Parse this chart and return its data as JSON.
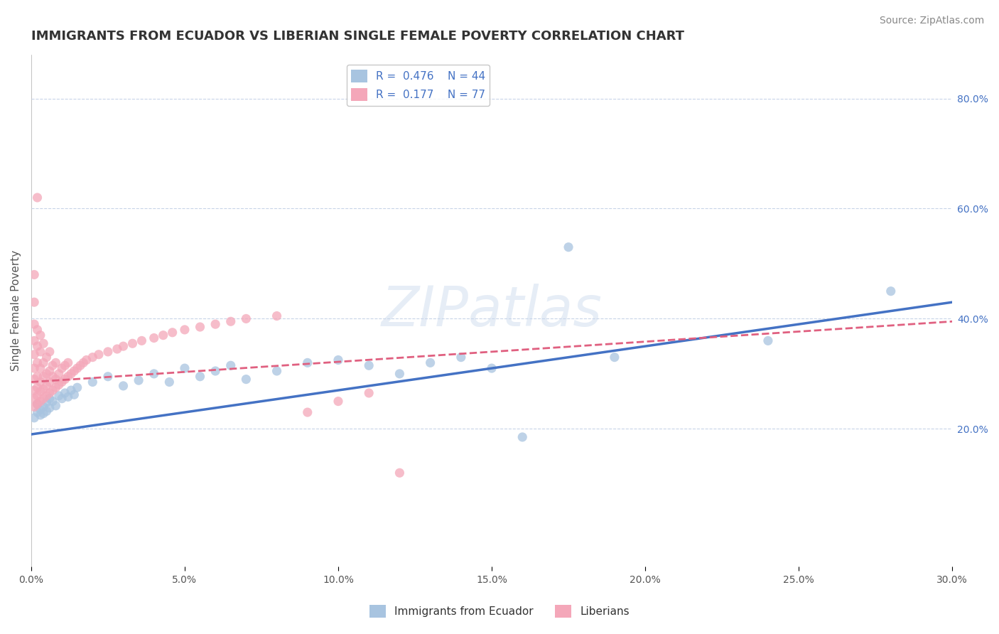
{
  "title": "IMMIGRANTS FROM ECUADOR VS LIBERIAN SINGLE FEMALE POVERTY CORRELATION CHART",
  "source": "Source: ZipAtlas.com",
  "ylabel": "Single Female Poverty",
  "legend_label1": "Immigrants from Ecuador",
  "legend_label2": "Liberians",
  "r1": 0.476,
  "n1": 44,
  "r2": 0.177,
  "n2": 77,
  "xlim": [
    0.0,
    0.3
  ],
  "ylim": [
    -0.05,
    0.88
  ],
  "xticks": [
    0.0,
    0.05,
    0.1,
    0.15,
    0.2,
    0.25,
    0.3
  ],
  "xticklabels": [
    "0.0%",
    "5.0%",
    "10.0%",
    "15.0%",
    "20.0%",
    "25.0%",
    "30.0%"
  ],
  "right_yticks": [
    0.2,
    0.4,
    0.6,
    0.8
  ],
  "right_yticklabels": [
    "20.0%",
    "40.0%",
    "60.0%",
    "80.0%"
  ],
  "color_blue": "#a8c4e0",
  "color_pink": "#f4a7b9",
  "line_blue": "#4472c4",
  "line_pink": "#e06080",
  "watermark": "ZIPatlas",
  "background_color": "#ffffff",
  "grid_color": "#c8d4e8",
  "blue_scatter": [
    [
      0.001,
      0.22
    ],
    [
      0.002,
      0.23
    ],
    [
      0.002,
      0.245
    ],
    [
      0.003,
      0.235
    ],
    [
      0.003,
      0.225
    ],
    [
      0.004,
      0.24
    ],
    [
      0.004,
      0.228
    ],
    [
      0.005,
      0.232
    ],
    [
      0.005,
      0.248
    ],
    [
      0.006,
      0.238
    ],
    [
      0.006,
      0.255
    ],
    [
      0.007,
      0.25
    ],
    [
      0.008,
      0.242
    ],
    [
      0.009,
      0.26
    ],
    [
      0.01,
      0.255
    ],
    [
      0.011,
      0.265
    ],
    [
      0.012,
      0.258
    ],
    [
      0.013,
      0.27
    ],
    [
      0.014,
      0.262
    ],
    [
      0.015,
      0.275
    ],
    [
      0.02,
      0.285
    ],
    [
      0.025,
      0.295
    ],
    [
      0.03,
      0.278
    ],
    [
      0.035,
      0.288
    ],
    [
      0.04,
      0.3
    ],
    [
      0.045,
      0.285
    ],
    [
      0.05,
      0.31
    ],
    [
      0.055,
      0.295
    ],
    [
      0.06,
      0.305
    ],
    [
      0.065,
      0.315
    ],
    [
      0.07,
      0.29
    ],
    [
      0.08,
      0.305
    ],
    [
      0.09,
      0.32
    ],
    [
      0.1,
      0.325
    ],
    [
      0.11,
      0.315
    ],
    [
      0.12,
      0.3
    ],
    [
      0.13,
      0.32
    ],
    [
      0.14,
      0.33
    ],
    [
      0.15,
      0.31
    ],
    [
      0.16,
      0.185
    ],
    [
      0.175,
      0.53
    ],
    [
      0.19,
      0.33
    ],
    [
      0.24,
      0.36
    ],
    [
      0.28,
      0.45
    ]
  ],
  "pink_scatter": [
    [
      0.001,
      0.24
    ],
    [
      0.001,
      0.255
    ],
    [
      0.001,
      0.27
    ],
    [
      0.001,
      0.29
    ],
    [
      0.001,
      0.31
    ],
    [
      0.001,
      0.335
    ],
    [
      0.001,
      0.36
    ],
    [
      0.001,
      0.39
    ],
    [
      0.001,
      0.43
    ],
    [
      0.001,
      0.48
    ],
    [
      0.002,
      0.245
    ],
    [
      0.002,
      0.26
    ],
    [
      0.002,
      0.275
    ],
    [
      0.002,
      0.295
    ],
    [
      0.002,
      0.32
    ],
    [
      0.002,
      0.35
    ],
    [
      0.002,
      0.38
    ],
    [
      0.002,
      0.62
    ],
    [
      0.003,
      0.25
    ],
    [
      0.003,
      0.268
    ],
    [
      0.003,
      0.285
    ],
    [
      0.003,
      0.31
    ],
    [
      0.003,
      0.34
    ],
    [
      0.003,
      0.37
    ],
    [
      0.004,
      0.255
    ],
    [
      0.004,
      0.272
    ],
    [
      0.004,
      0.295
    ],
    [
      0.004,
      0.32
    ],
    [
      0.004,
      0.355
    ],
    [
      0.005,
      0.26
    ],
    [
      0.005,
      0.278
    ],
    [
      0.005,
      0.3
    ],
    [
      0.005,
      0.33
    ],
    [
      0.006,
      0.265
    ],
    [
      0.006,
      0.285
    ],
    [
      0.006,
      0.305
    ],
    [
      0.006,
      0.34
    ],
    [
      0.007,
      0.27
    ],
    [
      0.007,
      0.295
    ],
    [
      0.007,
      0.315
    ],
    [
      0.008,
      0.275
    ],
    [
      0.008,
      0.29
    ],
    [
      0.008,
      0.32
    ],
    [
      0.009,
      0.28
    ],
    [
      0.009,
      0.3
    ],
    [
      0.01,
      0.285
    ],
    [
      0.01,
      0.31
    ],
    [
      0.011,
      0.29
    ],
    [
      0.011,
      0.315
    ],
    [
      0.012,
      0.295
    ],
    [
      0.012,
      0.32
    ],
    [
      0.013,
      0.3
    ],
    [
      0.014,
      0.305
    ],
    [
      0.015,
      0.31
    ],
    [
      0.016,
      0.315
    ],
    [
      0.017,
      0.32
    ],
    [
      0.018,
      0.325
    ],
    [
      0.02,
      0.33
    ],
    [
      0.022,
      0.335
    ],
    [
      0.025,
      0.34
    ],
    [
      0.028,
      0.345
    ],
    [
      0.03,
      0.35
    ],
    [
      0.033,
      0.355
    ],
    [
      0.036,
      0.36
    ],
    [
      0.04,
      0.365
    ],
    [
      0.043,
      0.37
    ],
    [
      0.046,
      0.375
    ],
    [
      0.05,
      0.38
    ],
    [
      0.055,
      0.385
    ],
    [
      0.06,
      0.39
    ],
    [
      0.065,
      0.395
    ],
    [
      0.07,
      0.4
    ],
    [
      0.08,
      0.405
    ],
    [
      0.09,
      0.23
    ],
    [
      0.1,
      0.25
    ],
    [
      0.11,
      0.265
    ],
    [
      0.12,
      0.12
    ]
  ],
  "title_fontsize": 13,
  "axis_fontsize": 11,
  "tick_fontsize": 10,
  "source_fontsize": 10
}
